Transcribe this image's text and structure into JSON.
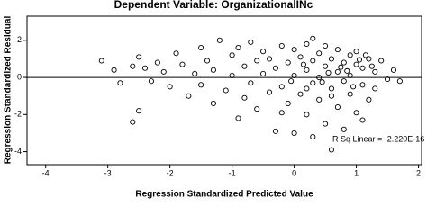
{
  "chart_data": {
    "type": "scatter",
    "title": "Dependent Variable: OrganizationalINc",
    "x_label": "Regression Standardized Predicted Value",
    "y_label": "Regression Standardized Residual",
    "annotation": "R Sq Linear = -2.220E-16",
    "fit_line_y": 0,
    "xlim": [
      -4.3,
      2.05
    ],
    "ylim": [
      -4.7,
      3.3
    ],
    "xticks": [
      -4,
      -3,
      -2,
      -1,
      0,
      1,
      2
    ],
    "yticks": [
      2,
      0,
      -2,
      -4
    ],
    "color": "#000000",
    "grid": false,
    "x": [
      -3.1,
      -2.9,
      -2.8,
      -2.6,
      -2.5,
      -2.4,
      -2.3,
      -2.2,
      -2.1,
      -2.0,
      -1.9,
      -1.8,
      -1.7,
      -1.6,
      -1.5,
      -1.5,
      -1.4,
      -1.3,
      -1.3,
      -1.2,
      -1.1,
      -1.0,
      -1.0,
      -0.9,
      -0.9,
      -0.8,
      -0.8,
      -0.7,
      -0.7,
      -0.6,
      -0.6,
      -0.5,
      -0.5,
      -0.4,
      -0.4,
      -0.3,
      -0.3,
      -0.2,
      -0.2,
      -0.1,
      -0.1,
      0.0,
      0.0,
      0.0,
      0.1,
      0.1,
      0.2,
      0.2,
      0.2,
      0.3,
      0.3,
      0.3,
      0.4,
      0.4,
      0.4,
      0.5,
      0.5,
      0.5,
      0.6,
      0.6,
      0.6,
      0.7,
      0.7,
      0.7,
      0.8,
      0.8,
      0.8,
      0.9,
      0.9,
      0.9,
      1.0,
      1.0,
      1.0,
      1.1,
      1.1,
      1.1,
      1.2,
      1.2,
      1.3,
      1.3,
      1.4,
      1.5,
      1.6,
      1.7,
      -2.5,
      -2.6,
      0.3,
      -0.2,
      0.6,
      0.2,
      0.85,
      1.05,
      0.45,
      0.15,
      -0.05,
      0.75,
      1.15,
      0.55,
      0.95,
      1.25
    ],
    "y": [
      0.9,
      0.4,
      -0.3,
      0.6,
      1.1,
      0.5,
      -0.2,
      0.8,
      0.3,
      -0.5,
      1.3,
      0.7,
      -1.0,
      0.2,
      1.6,
      -0.4,
      0.9,
      -1.4,
      0.4,
      2.0,
      -0.7,
      1.2,
      0.1,
      -2.2,
      1.6,
      0.6,
      -1.1,
      1.9,
      -0.3,
      0.9,
      -1.7,
      1.4,
      0.2,
      -0.8,
      1.0,
      -2.9,
      0.5,
      1.7,
      -0.5,
      -1.4,
      0.8,
      1.5,
      -3.0,
      0.1,
      -0.9,
      1.1,
      -2.0,
      0.4,
      1.8,
      -0.3,
      -3.2,
      0.9,
      1.3,
      -1.2,
      0.0,
      -2.5,
      0.6,
      1.7,
      -0.6,
      -3.9,
      1.0,
      0.3,
      -1.6,
      1.5,
      -0.2,
      -2.8,
      0.8,
      1.2,
      -0.9,
      0.1,
      -1.9,
      0.7,
      1.4,
      -0.4,
      -2.3,
      0.5,
      1.0,
      -1.2,
      0.3,
      -0.6,
      0.9,
      -0.1,
      0.4,
      -0.2,
      -1.8,
      -2.4,
      2.1,
      -1.9,
      -1.0,
      -0.6,
      0.35,
      0.95,
      -0.25,
      0.7,
      -0.2,
      0.55,
      1.2,
      0.25,
      -0.5,
      0.6
    ]
  }
}
